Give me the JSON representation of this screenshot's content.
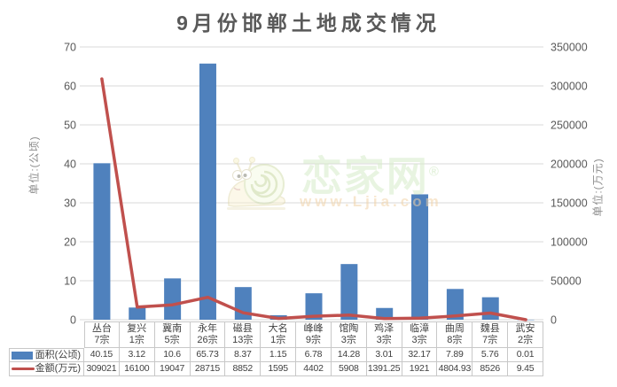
{
  "chart_data": {
    "type": "combo (bar + line)",
    "title": "9月份邯郸土地成交情况",
    "categories": [
      {
        "name": "丛台",
        "count": "7宗"
      },
      {
        "name": "复兴",
        "count": "1宗"
      },
      {
        "name": "冀南",
        "count": "5宗"
      },
      {
        "name": "永年",
        "count": "26宗"
      },
      {
        "name": "磁县",
        "count": "13宗"
      },
      {
        "name": "大名",
        "count": "1宗"
      },
      {
        "name": "峰峰",
        "count": "9宗"
      },
      {
        "name": "馆陶",
        "count": "3宗"
      },
      {
        "name": "鸡泽",
        "count": "3宗"
      },
      {
        "name": "临漳",
        "count": "3宗"
      },
      {
        "name": "曲周",
        "count": "8宗"
      },
      {
        "name": "魏县",
        "count": "7宗"
      },
      {
        "name": "武安",
        "count": "2宗"
      }
    ],
    "series": [
      {
        "name": "面积(公顷)",
        "type": "bar",
        "axis": "left",
        "color": "#4f81bd",
        "values": [
          40.15,
          3.12,
          10.6,
          65.73,
          8.37,
          1.15,
          6.78,
          14.28,
          3.01,
          32.17,
          7.89,
          5.76,
          0.01
        ]
      },
      {
        "name": "金额(万元)",
        "type": "line",
        "axis": "right",
        "color": "#c0504d",
        "values": [
          309021,
          16100,
          19047,
          28715,
          8852,
          1595,
          4402,
          5908,
          1391.25,
          1921,
          4804.93,
          8526,
          9.45
        ]
      }
    ],
    "left_axis": {
      "unit_label": "单位:(公顷)",
      "min": 0,
      "max": 70,
      "step": 10,
      "ticks": [
        0,
        10,
        20,
        30,
        40,
        50,
        60,
        70
      ]
    },
    "right_axis": {
      "unit_label": "单位:(万元)",
      "min": 0,
      "max": 350000,
      "step": 50000,
      "ticks": [
        0,
        50000,
        100000,
        150000,
        200000,
        250000,
        300000,
        350000
      ]
    },
    "grid": true,
    "gridline_color": "#d9d9d9",
    "text_color": "#595959",
    "legend_position": "left-of-data-table"
  },
  "watermark": {
    "icon": "snail-icon",
    "brand": "恋家网",
    "reg": "®",
    "url": "www.Ljia.com"
  }
}
